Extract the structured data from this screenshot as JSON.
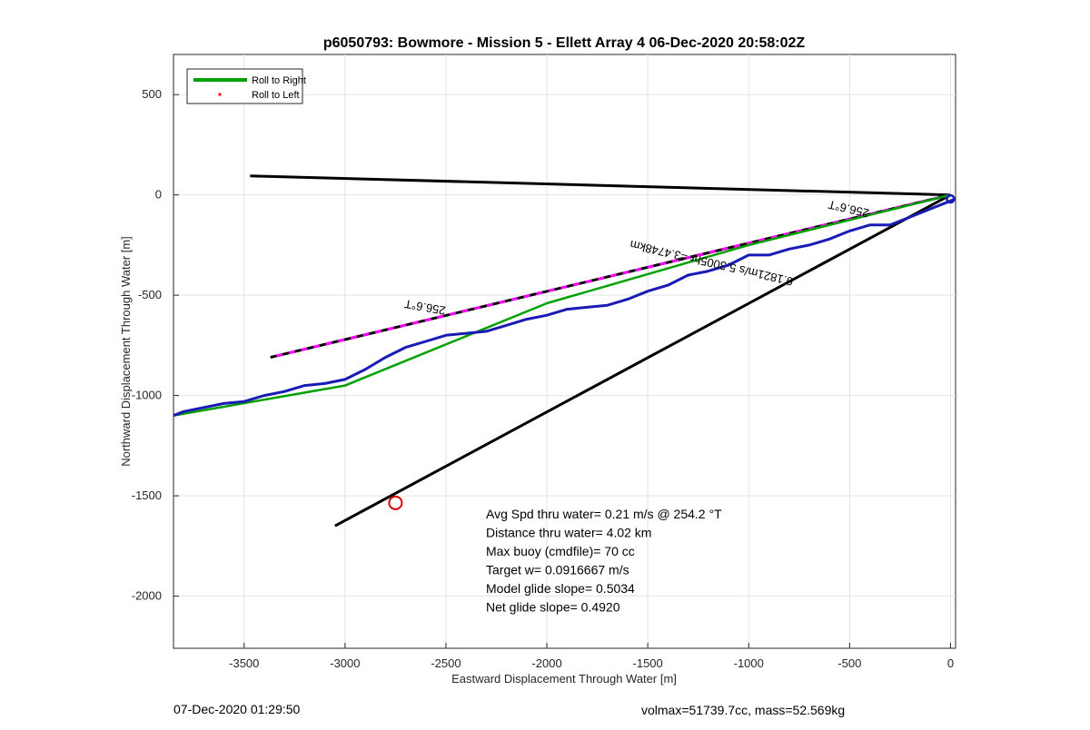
{
  "chart_data": {
    "type": "line",
    "title": "p6050793: Bowmore - Mission 5 - Ellett Array 4 06-Dec-2020 20:58:02Z",
    "xlabel": "Eastward Displacement Through Water [m]",
    "ylabel": "Northward Displacement Through Water [m]",
    "xlim": [
      -3850,
      25
    ],
    "ylim": [
      -2260,
      700
    ],
    "xticks": [
      -3500,
      -3000,
      -2500,
      -2000,
      -1500,
      -1000,
      -500,
      0
    ],
    "yticks": [
      500,
      0,
      -500,
      -1000,
      -1500,
      -2000
    ],
    "grid": true,
    "legend_position": "top-left",
    "legend": [
      {
        "label": "Roll to Right",
        "color": "#00a000",
        "style": "line"
      },
      {
        "label": "Roll to Left",
        "color": "#ff0000",
        "style": "dot"
      }
    ],
    "series": [
      {
        "name": "Roll to Right",
        "color": "#00a000",
        "x": [
          0,
          -1000,
          -2000,
          -3000,
          -3850
        ],
        "y": [
          0,
          -250,
          -540,
          -950,
          -1100
        ]
      },
      {
        "color": "#1a1ab4",
        "x": [
          20,
          0,
          -100,
          -200,
          -300,
          -400,
          -500,
          -600,
          -700,
          -800,
          -900,
          -1000,
          -1100,
          -1200,
          -1300,
          -1400,
          -1500,
          -1600,
          -1700,
          -1800,
          -1900,
          -2000,
          -2100,
          -2200,
          -2300,
          -2400,
          -2500,
          -2600,
          -2700,
          -2800,
          -2900,
          -3000,
          -3100,
          -3200,
          -3300,
          -3400,
          -3500,
          -3600,
          -3700,
          -3800,
          -3850
        ],
        "y": [
          -20,
          -30,
          -70,
          -110,
          -150,
          -150,
          -180,
          -220,
          -250,
          -270,
          -300,
          -300,
          -350,
          -380,
          -400,
          -450,
          -480,
          -520,
          -550,
          -560,
          -570,
          -600,
          -620,
          -650,
          -680,
          -690,
          -700,
          -730,
          -760,
          -810,
          -870,
          -920,
          -940,
          -950,
          -980,
          -1000,
          -1030,
          -1040,
          -1060,
          -1080,
          -1100
        ]
      }
    ],
    "reference_lines": [
      {
        "color": "#000000",
        "x": [
          0,
          -3470
        ],
        "y": [
          0,
          95
        ]
      },
      {
        "color": "#000000",
        "x": [
          0,
          -3050
        ],
        "y": [
          0,
          -1650
        ]
      },
      {
        "color": "#000000",
        "dashed_color": "#ff00ff",
        "x": [
          0,
          -3370
        ],
        "y": [
          0,
          -810
        ]
      }
    ],
    "markers": [
      {
        "shape": "circle",
        "color": "#e00000",
        "x": -2750,
        "y": -1535
      }
    ],
    "rotated_labels": [
      {
        "text": "256.6°T",
        "x": -500,
        "y": -50,
        "rotation_deg": 193
      },
      {
        "text": "256.6°T",
        "x": -2600,
        "y": -540,
        "rotation_deg": 190
      },
      {
        "text": "0.1821m/s 5.3005hr =3.4748km",
        "x": -1180,
        "y": -320,
        "rotation_deg": 193
      }
    ],
    "annotations": [
      "Avg Spd thru water=  0.21 m/s @ 254.2 °T",
      "Distance thru water=  4.02 km",
      "Max buoy (cmdfile)= 70 cc",
      "Target w= 0.0916667 m/s",
      "Model glide slope= 0.5034",
      "Net glide slope= 0.4920"
    ]
  },
  "footer": {
    "timestamp": "07-Dec-2020 01:29:50",
    "info": "volmax=51739.7cc, mass=52.569kg"
  }
}
